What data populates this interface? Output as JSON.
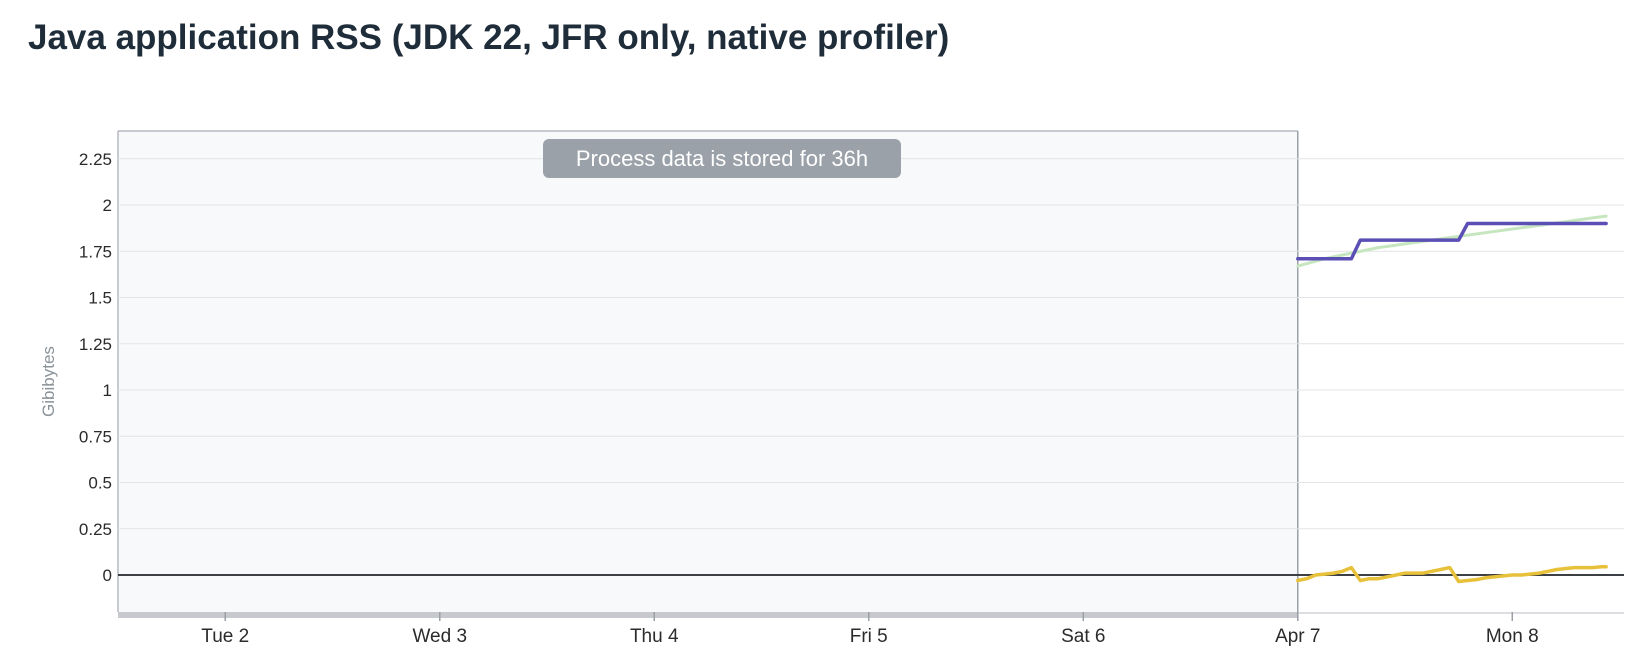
{
  "header": {
    "title": "Java application RSS (JDK 22, JFR only, native profiler)"
  },
  "chart_data": {
    "type": "line",
    "title": "Java application RSS (JDK 22, JFR only, native profiler)",
    "ylabel": "Gibibytes",
    "xlabel": "",
    "ylim": [
      -0.2,
      2.4
    ],
    "yticks": [
      0,
      0.25,
      0.5,
      0.75,
      1,
      1.25,
      1.5,
      1.75,
      2,
      2.25
    ],
    "ytick_labels": [
      "0",
      "0.25",
      "0.5",
      "0.75",
      "1",
      "1.25",
      "1.5",
      "1.75",
      "2",
      "2.25"
    ],
    "xlim": [
      "2024-04-01T12:00",
      "2024-04-08T12:30"
    ],
    "xticks": [
      "2024-04-02T00:00",
      "2024-04-03T00:00",
      "2024-04-04T00:00",
      "2024-04-05T00:00",
      "2024-04-06T00:00",
      "2024-04-07T00:00",
      "2024-04-08T00:00"
    ],
    "xtick_labels": [
      "Tue 2",
      "Wed 3",
      "Thu 4",
      "Fri 5",
      "Sat 6",
      "Apr 7",
      "Mon 8"
    ],
    "grid": true,
    "legend": "none",
    "unavailable_region": {
      "x_end": "2024-04-07T00:00",
      "label": "Process data is stored for 36h"
    },
    "series": [
      {
        "color": "#5b4fb5",
        "x": [
          "2024-04-07T00:00",
          "2024-04-07T06:00",
          "2024-04-07T07:00",
          "2024-04-07T18:00",
          "2024-04-07T19:00",
          "2024-04-08T10:30"
        ],
        "y": [
          1.71,
          1.71,
          1.81,
          1.81,
          1.9,
          1.9
        ]
      },
      {
        "color": "#c5e6bf",
        "x": [
          "2024-04-07T00:00",
          "2024-04-07T03:00",
          "2024-04-07T06:00",
          "2024-04-07T09:00",
          "2024-04-07T12:00",
          "2024-04-07T15:00",
          "2024-04-07T18:00",
          "2024-04-07T21:00",
          "2024-04-08T00:00",
          "2024-04-08T03:00",
          "2024-04-08T06:00",
          "2024-04-08T09:00",
          "2024-04-08T10:30"
        ],
        "y": [
          1.67,
          1.71,
          1.74,
          1.77,
          1.79,
          1.81,
          1.83,
          1.85,
          1.87,
          1.89,
          1.91,
          1.93,
          1.94
        ]
      },
      {
        "color": "#e8c13a",
        "x": [
          "2024-04-07T00:00",
          "2024-04-07T01:00",
          "2024-04-07T02:00",
          "2024-04-07T03:00",
          "2024-04-07T04:00",
          "2024-04-07T05:00",
          "2024-04-07T06:00",
          "2024-04-07T07:00",
          "2024-04-07T08:00",
          "2024-04-07T09:00",
          "2024-04-07T10:00",
          "2024-04-07T11:00",
          "2024-04-07T12:00",
          "2024-04-07T13:00",
          "2024-04-07T14:00",
          "2024-04-07T15:00",
          "2024-04-07T16:00",
          "2024-04-07T17:00",
          "2024-04-07T18:00",
          "2024-04-07T19:00",
          "2024-04-07T20:00",
          "2024-04-07T21:00",
          "2024-04-07T22:00",
          "2024-04-07T23:00",
          "2024-04-08T00:00",
          "2024-04-08T01:00",
          "2024-04-08T02:00",
          "2024-04-08T03:00",
          "2024-04-08T04:00",
          "2024-04-08T05:00",
          "2024-04-08T06:00",
          "2024-04-08T07:00",
          "2024-04-08T08:00",
          "2024-04-08T09:00",
          "2024-04-08T10:00",
          "2024-04-08T10:30"
        ],
        "y": [
          -0.03,
          -0.02,
          0.0,
          0.005,
          0.01,
          0.02,
          0.04,
          -0.03,
          -0.02,
          -0.02,
          -0.01,
          0.0,
          0.01,
          0.01,
          0.01,
          0.02,
          0.03,
          0.04,
          -0.035,
          -0.03,
          -0.025,
          -0.015,
          -0.01,
          -0.005,
          0.0,
          0.0,
          0.005,
          0.01,
          0.02,
          0.03,
          0.035,
          0.04,
          0.04,
          0.04,
          0.045,
          0.045
        ]
      }
    ]
  }
}
